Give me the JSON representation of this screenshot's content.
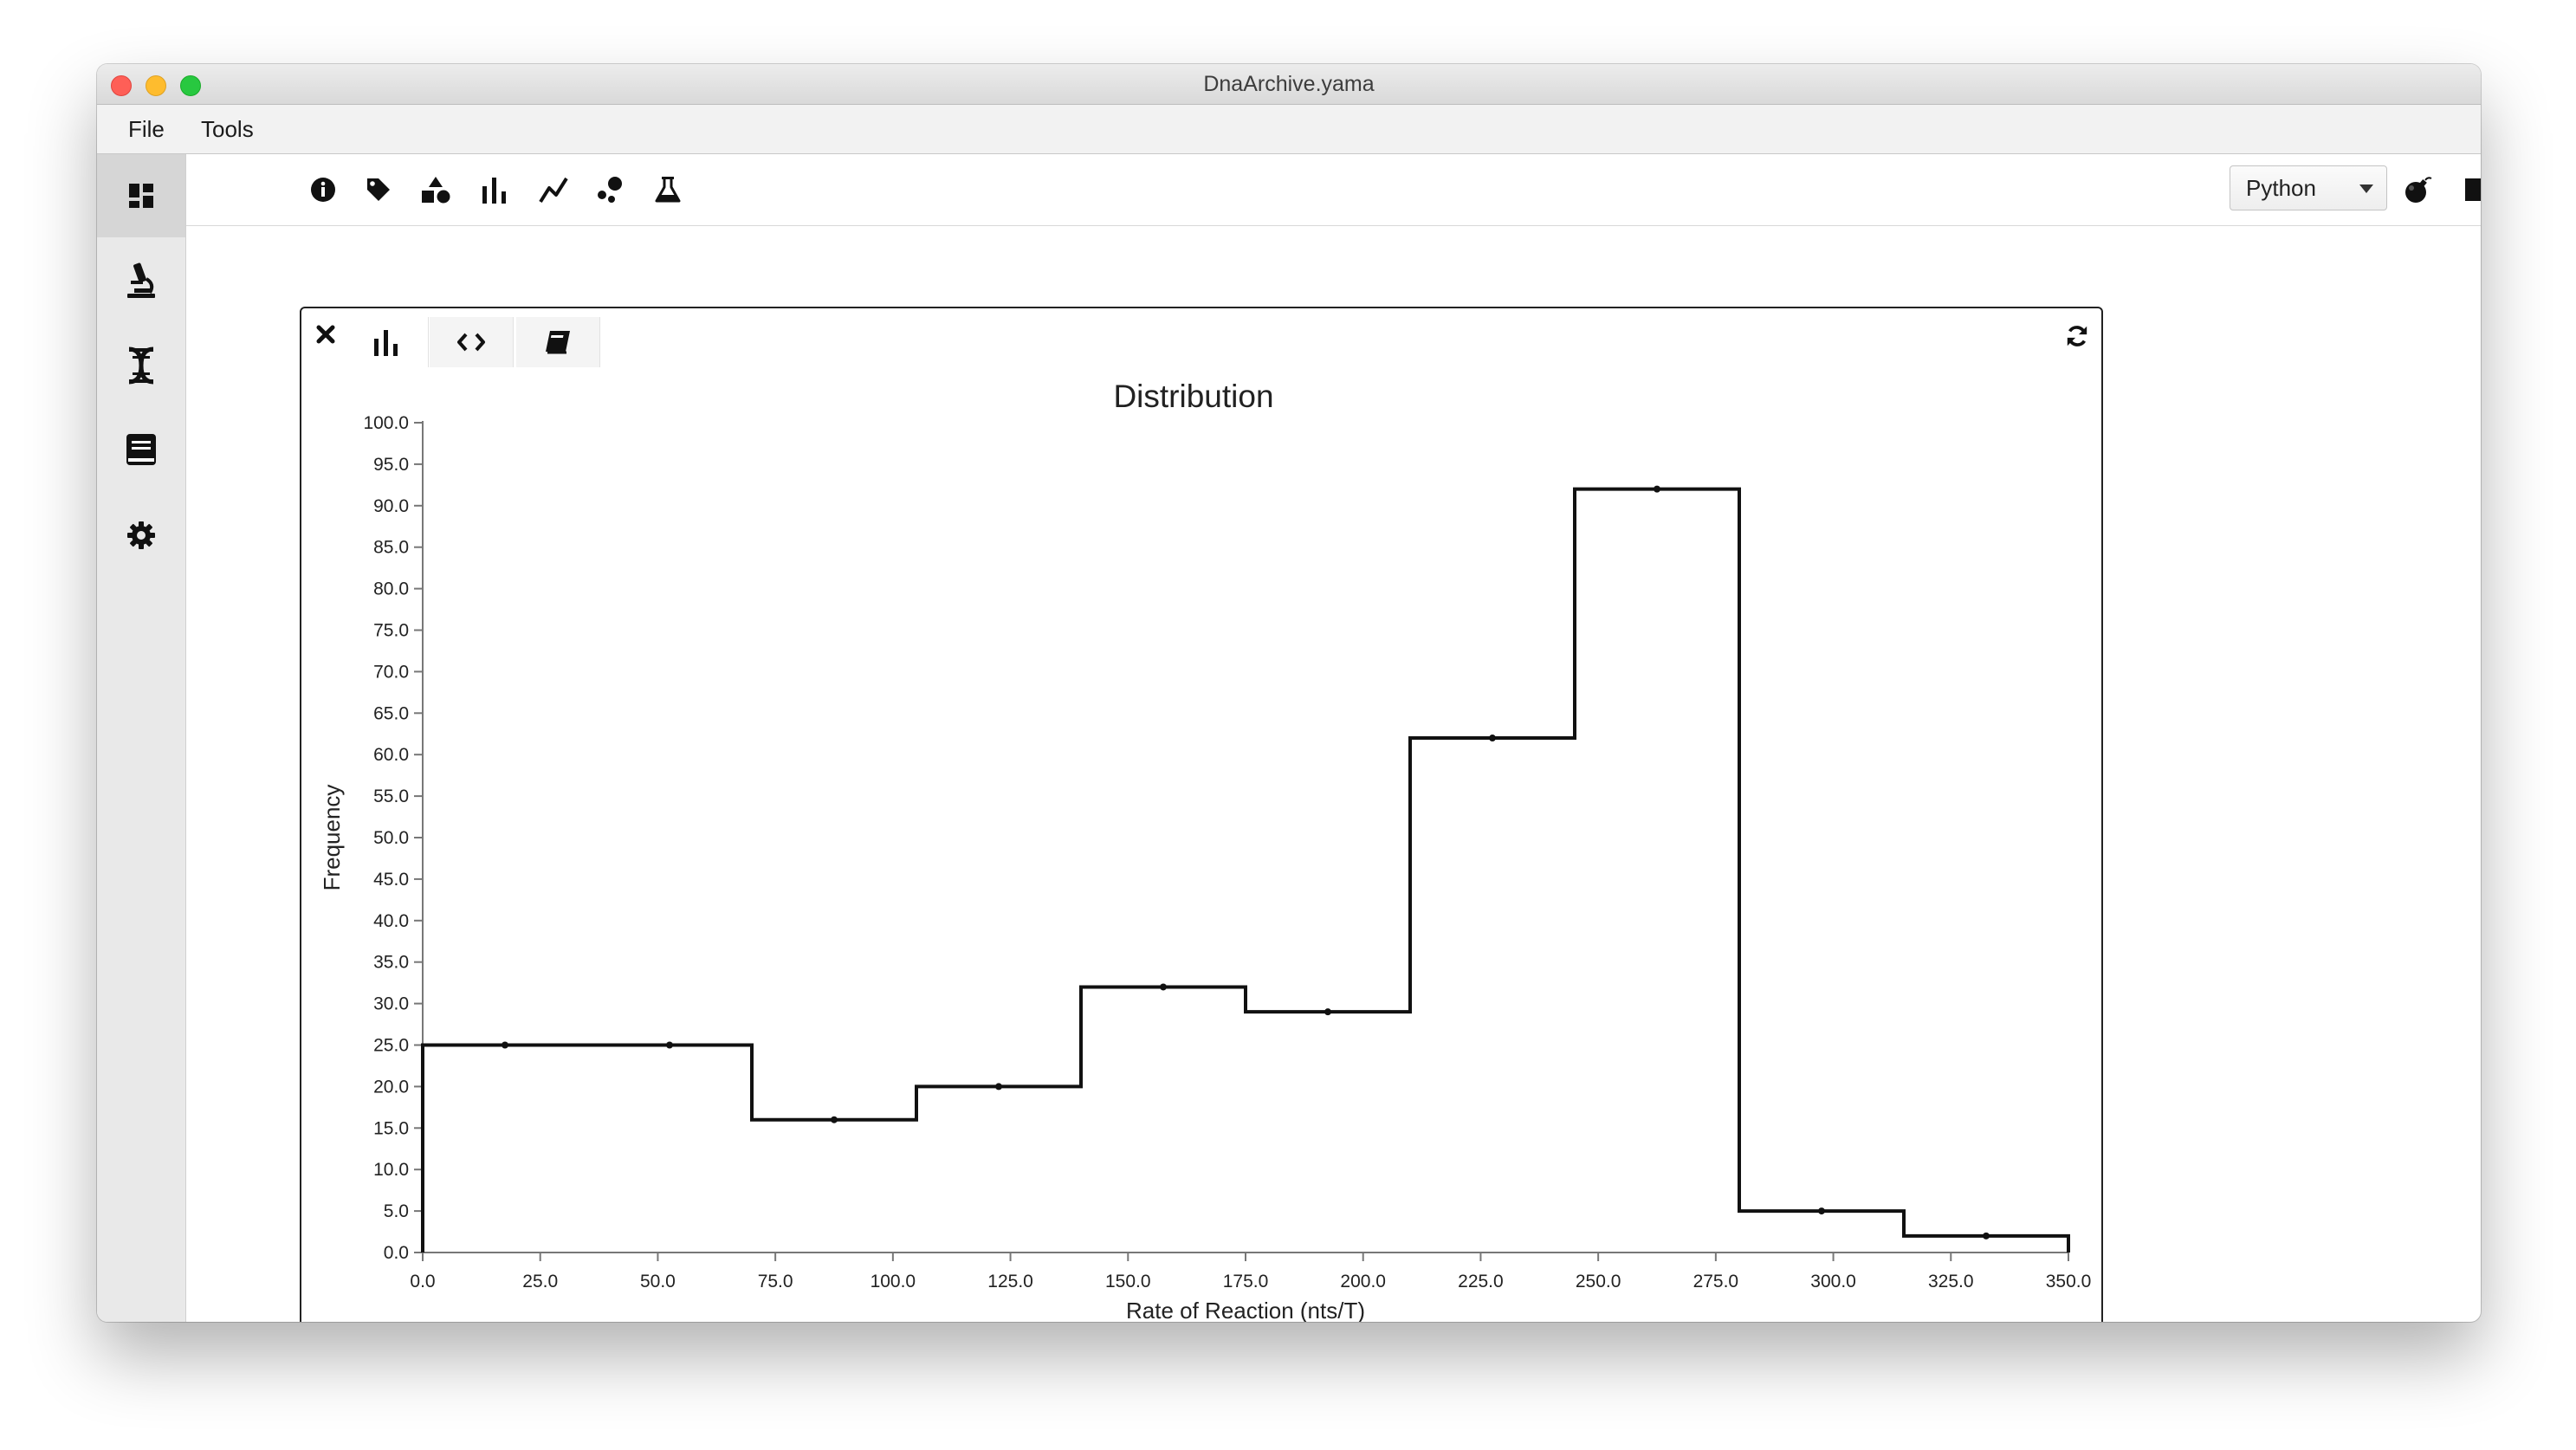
{
  "window": {
    "title": "DnaArchive.yama"
  },
  "menu": {
    "items": [
      {
        "label": "File"
      },
      {
        "label": "Tools"
      }
    ]
  },
  "sidebar": {
    "items": [
      {
        "icon": "dashboard-icon",
        "active": true
      },
      {
        "icon": "microscope-icon",
        "active": false
      },
      {
        "icon": "dna-icon",
        "active": false
      },
      {
        "icon": "book-icon",
        "active": false
      },
      {
        "icon": "gear-icon",
        "active": false
      }
    ]
  },
  "toolbar": {
    "tools": [
      "info-icon",
      "tag-icon",
      "shapes-icon",
      "bar-chart-icon",
      "line-chart-icon",
      "scatter-icon",
      "flask-icon"
    ],
    "language": {
      "selected": "Python"
    },
    "actions": [
      "bomb-icon",
      "stop-icon",
      "refresh-icon"
    ]
  },
  "panel": {
    "tabs": [
      "bar-chart-icon",
      "code-icon",
      "book-icon"
    ],
    "close_icon": "close-icon",
    "refresh_icon": "refresh-icon"
  },
  "chart_data": {
    "type": "bar",
    "style": "step-histogram",
    "title": "Distribution",
    "xlabel": "Rate of Reaction (nts/T)",
    "ylabel": "Frequency",
    "xlim": [
      0,
      350
    ],
    "ylim": [
      0,
      100
    ],
    "x_ticks": [
      "0.0",
      "25.0",
      "50.0",
      "75.0",
      "100.0",
      "125.0",
      "150.0",
      "175.0",
      "200.0",
      "225.0",
      "250.0",
      "275.0",
      "300.0",
      "325.0",
      "350.0"
    ],
    "y_ticks": [
      "0.0",
      "5.0",
      "10.0",
      "15.0",
      "20.0",
      "25.0",
      "30.0",
      "35.0",
      "40.0",
      "45.0",
      "50.0",
      "55.0",
      "60.0",
      "65.0",
      "70.0",
      "75.0",
      "80.0",
      "85.0",
      "90.0",
      "95.0",
      "100.0"
    ],
    "bins": [
      {
        "x0": 0,
        "x1": 35,
        "value": 25
      },
      {
        "x0": 35,
        "x1": 70,
        "value": 25
      },
      {
        "x0": 70,
        "x1": 105,
        "value": 16
      },
      {
        "x0": 105,
        "x1": 140,
        "value": 20
      },
      {
        "x0": 140,
        "x1": 175,
        "value": 32
      },
      {
        "x0": 175,
        "x1": 210,
        "value": 29
      },
      {
        "x0": 210,
        "x1": 245,
        "value": 62
      },
      {
        "x0": 245,
        "x1": 280,
        "value": 92
      },
      {
        "x0": 280,
        "x1": 315,
        "value": 5
      },
      {
        "x0": 315,
        "x1": 350,
        "value": 2
      }
    ],
    "grid": false,
    "color": "#111111"
  }
}
